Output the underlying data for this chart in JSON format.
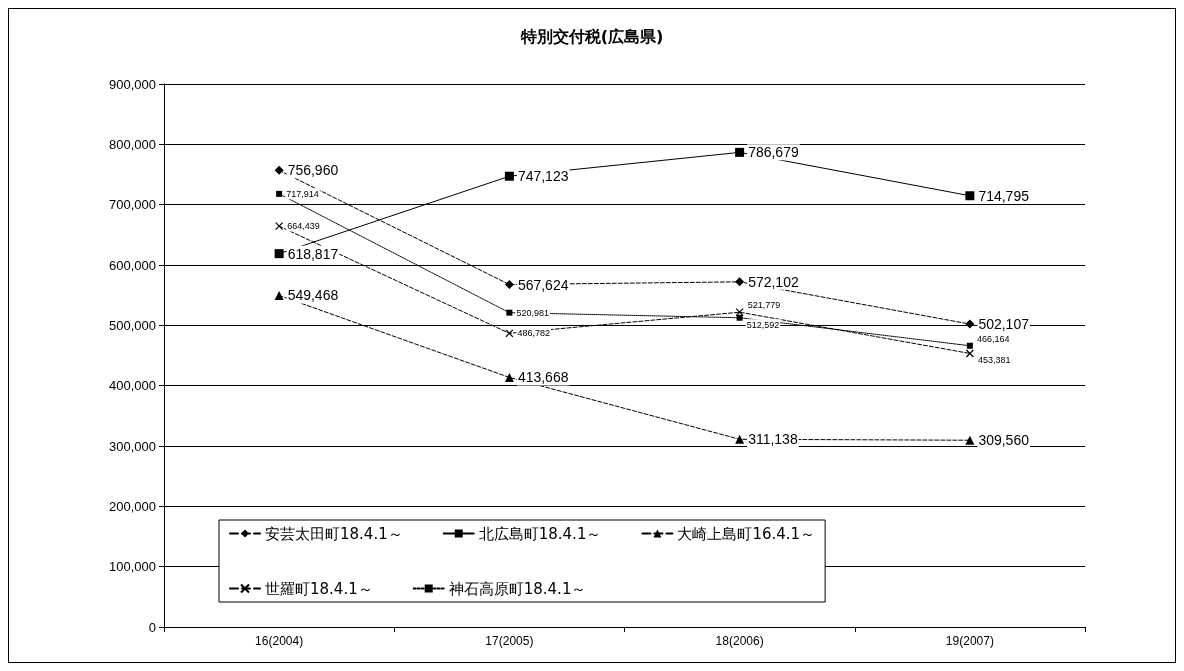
{
  "chart_data": {
    "type": "line",
    "title": "特別交付税(広島県)",
    "categories": [
      "16(2004)",
      "17(2005)",
      "18(2006)",
      "19(2007)"
    ],
    "series": [
      {
        "name": "安芸太田町18.4.1～",
        "color": "#000000",
        "marker": "diamond",
        "line_style": "dashed",
        "values": [
          756960,
          567624,
          572102,
          502107
        ],
        "value_labels": [
          "756,960",
          "567,624",
          "572,102",
          "502,107"
        ]
      },
      {
        "name": "北広島町18.4.1～",
        "color": "#000000",
        "marker": "square",
        "line_style": "solid",
        "values": [
          618817,
          747123,
          786679,
          714795
        ],
        "value_labels": [
          "618,817",
          "747,123",
          "786,679",
          "714,795"
        ]
      },
      {
        "name": "大崎上島町16.4.1～",
        "color": "#000000",
        "marker": "triangle",
        "line_style": "dashed",
        "values": [
          549468,
          413668,
          311138,
          309560
        ],
        "value_labels": [
          "549,468",
          "413,668",
          "311,138",
          "309,560"
        ]
      },
      {
        "name": "世羅町18.4.1～",
        "color": "#000000",
        "marker": "cross",
        "line_style": "dashed",
        "values": [
          664439,
          486782,
          521779,
          453381
        ],
        "value_labels": [
          "664,439",
          "486,782",
          "521,779",
          "453,381"
        ]
      },
      {
        "name": "神石高原町18.4.1～",
        "color": "#000000",
        "marker": "square",
        "line_style": "dotted",
        "values": [
          717914,
          520981,
          512592,
          466164
        ],
        "value_labels": [
          "717,914",
          "520,981",
          "512,592",
          "466,164"
        ]
      }
    ],
    "ylim": [
      0,
      900000
    ],
    "yticks": [
      {
        "value": 0,
        "label": "0"
      },
      {
        "value": 100000,
        "label": "100,000"
      },
      {
        "value": 200000,
        "label": "200,000"
      },
      {
        "value": 300000,
        "label": "300,000"
      },
      {
        "value": 400000,
        "label": "400,000"
      },
      {
        "value": 500000,
        "label": "500,000"
      },
      {
        "value": 600000,
        "label": "600,000"
      },
      {
        "value": 700000,
        "label": "700,000"
      },
      {
        "value": 800000,
        "label": "800,000"
      },
      {
        "value": 900000,
        "label": "900,000"
      }
    ],
    "grid": "y",
    "legend": "bottom"
  }
}
